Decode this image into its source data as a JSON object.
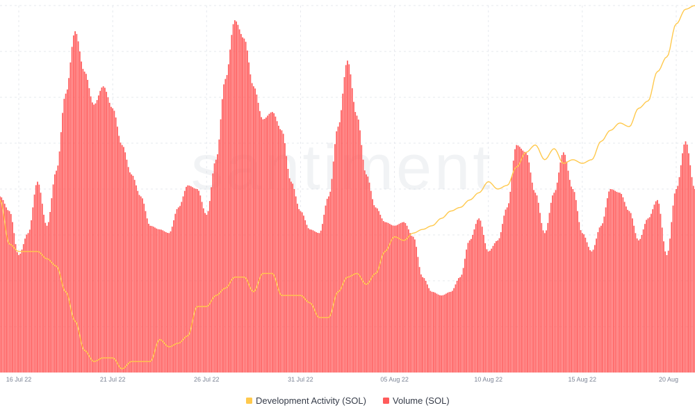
{
  "watermark": "santiment",
  "colors": {
    "volume": "#ff5b5b",
    "volume_stroke": "#ffb3b3",
    "dev_activity": "#ffc94d",
    "grid": "#e6e9ee",
    "tick_text": "#7d8596"
  },
  "chart_data": {
    "type": "bar",
    "x_ticks": [
      "16 Jul 22",
      "21 Jul 22",
      "26 Jul 22",
      "31 Jul 22",
      "05 Aug 22",
      "10 Aug 22",
      "15 Aug 22",
      "20 Aug"
    ],
    "x_range": [
      "2022-07-15",
      "2022-08-21"
    ],
    "grid": true,
    "y_axis_labels_visible": false,
    "legend_position": "bottom-center",
    "legend": [
      "Development Activity (SOL)",
      "Volume (SOL)"
    ],
    "series": [
      {
        "name": "Volume (SOL)",
        "type": "bar",
        "color": "#ff5b5b",
        "scale": "relative 0-100",
        "ylim": [
          0,
          100
        ],
        "points": [
          [
            "2022-07-15T00:00",
            48
          ],
          [
            "2022-07-15T12:00",
            44
          ],
          [
            "2022-07-16T00:00",
            32
          ],
          [
            "2022-07-16T12:00",
            38
          ],
          [
            "2022-07-17T00:00",
            52
          ],
          [
            "2022-07-17T12:00",
            40
          ],
          [
            "2022-07-18T00:00",
            55
          ],
          [
            "2022-07-18T12:00",
            76
          ],
          [
            "2022-07-19T00:00",
            93
          ],
          [
            "2022-07-19T12:00",
            82
          ],
          [
            "2022-07-20T00:00",
            73
          ],
          [
            "2022-07-20T12:00",
            78
          ],
          [
            "2022-07-21T00:00",
            72
          ],
          [
            "2022-07-21T12:00",
            62
          ],
          [
            "2022-07-22T00:00",
            54
          ],
          [
            "2022-07-22T12:00",
            48
          ],
          [
            "2022-07-23T00:00",
            40
          ],
          [
            "2022-07-23T12:00",
            39
          ],
          [
            "2022-07-24T00:00",
            38
          ],
          [
            "2022-07-24T12:00",
            45
          ],
          [
            "2022-07-25T00:00",
            51
          ],
          [
            "2022-07-25T12:00",
            50
          ],
          [
            "2022-07-26T00:00",
            43
          ],
          [
            "2022-07-26T12:00",
            58
          ],
          [
            "2022-07-27T00:00",
            80
          ],
          [
            "2022-07-27T12:00",
            96
          ],
          [
            "2022-07-28T00:00",
            91
          ],
          [
            "2022-07-28T12:00",
            78
          ],
          [
            "2022-07-29T00:00",
            69
          ],
          [
            "2022-07-29T12:00",
            71
          ],
          [
            "2022-07-30T00:00",
            66
          ],
          [
            "2022-07-30T12:00",
            52
          ],
          [
            "2022-07-31T00:00",
            44
          ],
          [
            "2022-07-31T12:00",
            39
          ],
          [
            "2022-08-01T00:00",
            38
          ],
          [
            "2022-08-01T12:00",
            48
          ],
          [
            "2022-08-02T00:00",
            67
          ],
          [
            "2022-08-02T12:00",
            85
          ],
          [
            "2022-08-03T00:00",
            70
          ],
          [
            "2022-08-03T12:00",
            54
          ],
          [
            "2022-08-04T00:00",
            45
          ],
          [
            "2022-08-04T12:00",
            41
          ],
          [
            "2022-08-05T00:00",
            40
          ],
          [
            "2022-08-05T12:00",
            41
          ],
          [
            "2022-08-06T00:00",
            37
          ],
          [
            "2022-08-06T12:00",
            26
          ],
          [
            "2022-08-07T00:00",
            22
          ],
          [
            "2022-08-07T12:00",
            21
          ],
          [
            "2022-08-08T00:00",
            22
          ],
          [
            "2022-08-08T12:00",
            26
          ],
          [
            "2022-08-09T00:00",
            36
          ],
          [
            "2022-08-09T12:00",
            42
          ],
          [
            "2022-08-10T00:00",
            33
          ],
          [
            "2022-08-10T12:00",
            36
          ],
          [
            "2022-08-11T00:00",
            45
          ],
          [
            "2022-08-11T12:00",
            62
          ],
          [
            "2022-08-12T00:00",
            60
          ],
          [
            "2022-08-12T12:00",
            49
          ],
          [
            "2022-08-13T00:00",
            38
          ],
          [
            "2022-08-13T12:00",
            49
          ],
          [
            "2022-08-14T00:00",
            60
          ],
          [
            "2022-08-14T12:00",
            50
          ],
          [
            "2022-08-15T00:00",
            38
          ],
          [
            "2022-08-15T12:00",
            33
          ],
          [
            "2022-08-16T00:00",
            40
          ],
          [
            "2022-08-16T12:00",
            50
          ],
          [
            "2022-08-17T00:00",
            49
          ],
          [
            "2022-08-17T12:00",
            44
          ],
          [
            "2022-08-18T00:00",
            36
          ],
          [
            "2022-08-18T12:00",
            42
          ],
          [
            "2022-08-19T00:00",
            47
          ],
          [
            "2022-08-19T12:00",
            32
          ],
          [
            "2022-08-20T00:00",
            50
          ],
          [
            "2022-08-20T12:00",
            63
          ],
          [
            "2022-08-21T00:00",
            50
          ]
        ]
      },
      {
        "name": "Development Activity (SOL)",
        "type": "line",
        "color": "#ffc94d",
        "scale": "relative 0-100",
        "ylim": [
          0,
          100
        ],
        "points": [
          [
            "2022-07-15T00:00",
            47
          ],
          [
            "2022-07-15T12:00",
            35
          ],
          [
            "2022-07-16T00:00",
            33
          ],
          [
            "2022-07-16T12:00",
            33
          ],
          [
            "2022-07-17T00:00",
            33
          ],
          [
            "2022-07-17T12:00",
            31
          ],
          [
            "2022-07-18T00:00",
            29
          ],
          [
            "2022-07-18T12:00",
            22
          ],
          [
            "2022-07-19T00:00",
            14
          ],
          [
            "2022-07-19T12:00",
            6
          ],
          [
            "2022-07-20T00:00",
            3
          ],
          [
            "2022-07-20T12:00",
            4
          ],
          [
            "2022-07-21T00:00",
            4
          ],
          [
            "2022-07-21T12:00",
            1
          ],
          [
            "2022-07-22T00:00",
            3
          ],
          [
            "2022-07-22T12:00",
            3
          ],
          [
            "2022-07-23T00:00",
            3
          ],
          [
            "2022-07-23T12:00",
            9
          ],
          [
            "2022-07-24T00:00",
            7
          ],
          [
            "2022-07-24T12:00",
            8
          ],
          [
            "2022-07-25T00:00",
            10
          ],
          [
            "2022-07-25T12:00",
            18
          ],
          [
            "2022-07-26T00:00",
            18
          ],
          [
            "2022-07-26T12:00",
            21
          ],
          [
            "2022-07-27T00:00",
            23
          ],
          [
            "2022-07-27T12:00",
            26
          ],
          [
            "2022-07-28T00:00",
            26
          ],
          [
            "2022-07-28T12:00",
            22
          ],
          [
            "2022-07-29T00:00",
            27
          ],
          [
            "2022-07-29T12:00",
            27
          ],
          [
            "2022-07-30T00:00",
            21
          ],
          [
            "2022-07-30T12:00",
            21
          ],
          [
            "2022-07-31T00:00",
            21
          ],
          [
            "2022-07-31T12:00",
            19
          ],
          [
            "2022-08-01T00:00",
            15
          ],
          [
            "2022-08-01T12:00",
            15
          ],
          [
            "2022-08-02T00:00",
            22
          ],
          [
            "2022-08-02T12:00",
            26
          ],
          [
            "2022-08-03T00:00",
            27
          ],
          [
            "2022-08-03T12:00",
            24
          ],
          [
            "2022-08-04T00:00",
            27
          ],
          [
            "2022-08-04T12:00",
            33
          ],
          [
            "2022-08-05T00:00",
            37
          ],
          [
            "2022-08-05T12:00",
            36
          ],
          [
            "2022-08-06T00:00",
            38
          ],
          [
            "2022-08-06T12:00",
            39
          ],
          [
            "2022-08-07T00:00",
            40
          ],
          [
            "2022-08-07T12:00",
            42
          ],
          [
            "2022-08-08T00:00",
            44
          ],
          [
            "2022-08-08T12:00",
            45
          ],
          [
            "2022-08-09T00:00",
            47
          ],
          [
            "2022-08-09T12:00",
            49
          ],
          [
            "2022-08-10T00:00",
            52
          ],
          [
            "2022-08-10T12:00",
            50
          ],
          [
            "2022-08-11T00:00",
            51
          ],
          [
            "2022-08-11T12:00",
            56
          ],
          [
            "2022-08-12T00:00",
            60
          ],
          [
            "2022-08-12T12:00",
            62
          ],
          [
            "2022-08-13T00:00",
            58
          ],
          [
            "2022-08-13T12:00",
            61
          ],
          [
            "2022-08-14T00:00",
            57
          ],
          [
            "2022-08-14T12:00",
            58
          ],
          [
            "2022-08-15T00:00",
            57
          ],
          [
            "2022-08-15T12:00",
            58
          ],
          [
            "2022-08-16T00:00",
            63
          ],
          [
            "2022-08-16T12:00",
            66
          ],
          [
            "2022-08-17T00:00",
            68
          ],
          [
            "2022-08-17T12:00",
            67
          ],
          [
            "2022-08-18T00:00",
            72
          ],
          [
            "2022-08-18T12:00",
            74
          ],
          [
            "2022-08-19T00:00",
            82
          ],
          [
            "2022-08-19T12:00",
            86
          ],
          [
            "2022-08-20T00:00",
            95
          ],
          [
            "2022-08-20T12:00",
            99
          ],
          [
            "2022-08-21T00:00",
            100
          ]
        ]
      }
    ]
  }
}
